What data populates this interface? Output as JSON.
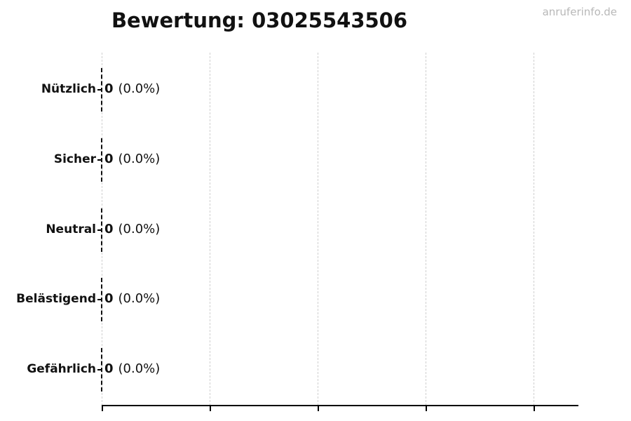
{
  "page": {
    "watermark": "anruferinfo.de"
  },
  "chart_data": {
    "type": "bar",
    "orientation": "horizontal",
    "title": "Bewertung: 03025543506",
    "categories": [
      "Nützlich",
      "Sicher",
      "Neutral",
      "Belästigend",
      "Gefährlich"
    ],
    "values": [
      0,
      0,
      0,
      0,
      0
    ],
    "percentages": [
      0.0,
      0.0,
      0.0,
      0.0,
      0.0
    ],
    "rows": [
      {
        "label": "Nützlich",
        "value": "0",
        "pct": "(0.0%)"
      },
      {
        "label": "Sicher",
        "value": "0",
        "pct": "(0.0%)"
      },
      {
        "label": "Neutral",
        "value": "0",
        "pct": "(0.0%)"
      },
      {
        "label": "Belästigend",
        "value": "0",
        "pct": "(0.0%)"
      },
      {
        "label": "Gefährlich",
        "value": "0",
        "pct": "(0.0%)"
      }
    ],
    "xlabel": "",
    "ylabel": "",
    "xlim": [
      0,
      1
    ],
    "x_tick_labels": [],
    "grid": {
      "vertical": true,
      "style": "dashed",
      "color": "#cfcfcf"
    },
    "legend": "none",
    "colors": {
      "axis": "#000000",
      "text": "#111111",
      "bar_edge": "#111111",
      "grid": "#cfcfcf",
      "watermark": "#b8b8b8",
      "background": "#ffffff"
    }
  }
}
